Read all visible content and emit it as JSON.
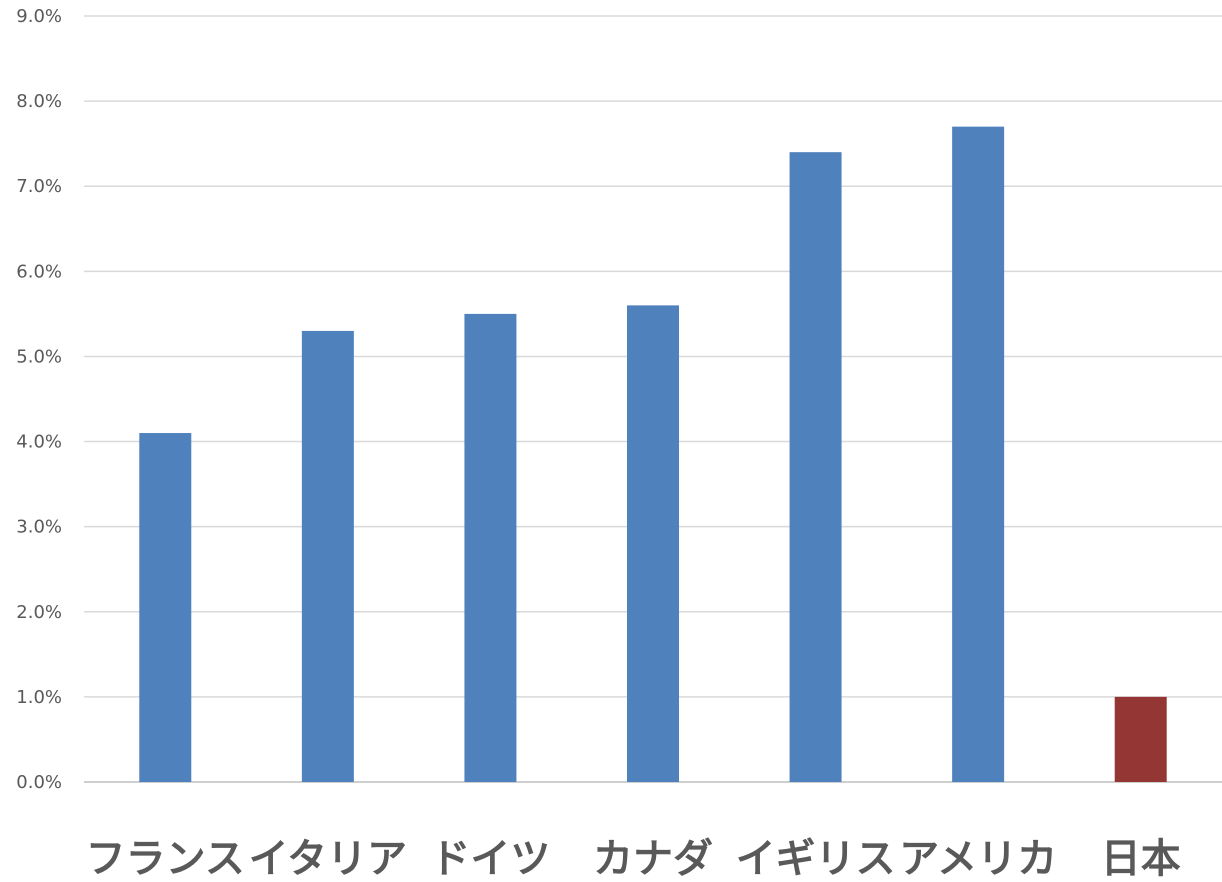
{
  "chart_data": {
    "type": "bar",
    "title": "",
    "xlabel": "",
    "ylabel": "",
    "categories": [
      "フランス",
      "イタリア",
      "ドイツ",
      "カナダ",
      "イギリス",
      "アメリカ",
      "日本"
    ],
    "values": [
      4.1,
      5.3,
      5.5,
      5.6,
      7.4,
      7.7,
      1.0
    ],
    "value_unit": "%",
    "ylim": [
      0,
      9
    ],
    "yticks": [
      "0.0%",
      "1.0%",
      "2.0%",
      "3.0%",
      "4.0%",
      "5.0%",
      "6.0%",
      "7.0%",
      "8.0%",
      "9.0%"
    ],
    "grid": true,
    "legend": "none",
    "colors": {
      "default_bar": "#4f81bd",
      "highlight_bar": "#943634",
      "highlight_category": "日本"
    }
  }
}
